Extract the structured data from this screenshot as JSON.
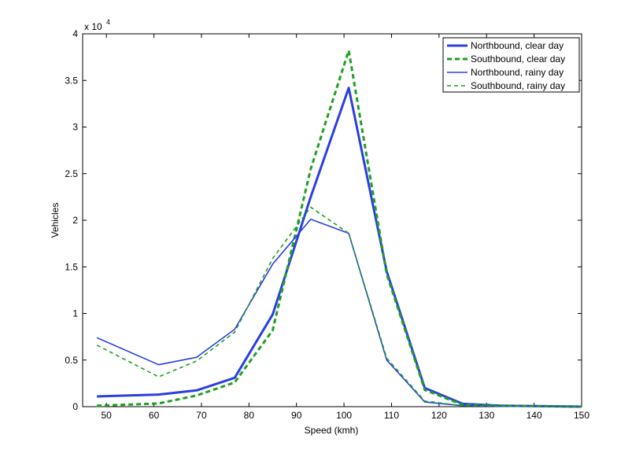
{
  "chart_data": {
    "type": "line",
    "title": "",
    "xlabel": "Speed (kmh)",
    "ylabel": "Vehicles",
    "xlim": [
      45,
      150
    ],
    "ylim": [
      0,
      40000
    ],
    "x_ticks": [
      50,
      60,
      70,
      80,
      90,
      100,
      110,
      120,
      130,
      140,
      150
    ],
    "y_ticks": [
      0,
      5000,
      10000,
      15000,
      20000,
      25000,
      30000,
      35000,
      40000
    ],
    "y_tick_labels": [
      "0",
      "0.5",
      "1",
      "1.5",
      "2",
      "2.5",
      "3",
      "3.5",
      "4"
    ],
    "y_exponent_base": "x 10",
    "y_exponent_power": "4",
    "grid": false,
    "legend_position": "top-right",
    "x": [
      48,
      61,
      69,
      77,
      85,
      93,
      101,
      109,
      117,
      125,
      133,
      142,
      150
    ],
    "series": [
      {
        "name": "Northbound, clear day",
        "color": "#2b3fe0",
        "style": "solid",
        "weight": "thick",
        "values": [
          1100,
          1300,
          1750,
          3100,
          9900,
          22500,
          34200,
          14500,
          2000,
          300,
          100,
          50,
          0
        ]
      },
      {
        "name": "Southbound, clear day",
        "color": "#1fa01f",
        "style": "dashed",
        "weight": "thick",
        "values": [
          100,
          350,
          1200,
          2600,
          8200,
          25500,
          38200,
          14200,
          1800,
          200,
          100,
          50,
          0
        ]
      },
      {
        "name": "Northbound, rainy day",
        "color": "#2b3fe0",
        "style": "solid",
        "weight": "thin",
        "values": [
          7400,
          4500,
          5300,
          8300,
          15300,
          20100,
          18600,
          5000,
          500,
          100,
          50,
          20,
          0
        ]
      },
      {
        "name": "Southbound, rainy day",
        "color": "#1fa01f",
        "style": "dashed",
        "weight": "thin",
        "values": [
          6600,
          3200,
          4900,
          8000,
          15900,
          21400,
          18600,
          5200,
          600,
          100,
          50,
          20,
          0
        ]
      }
    ]
  }
}
